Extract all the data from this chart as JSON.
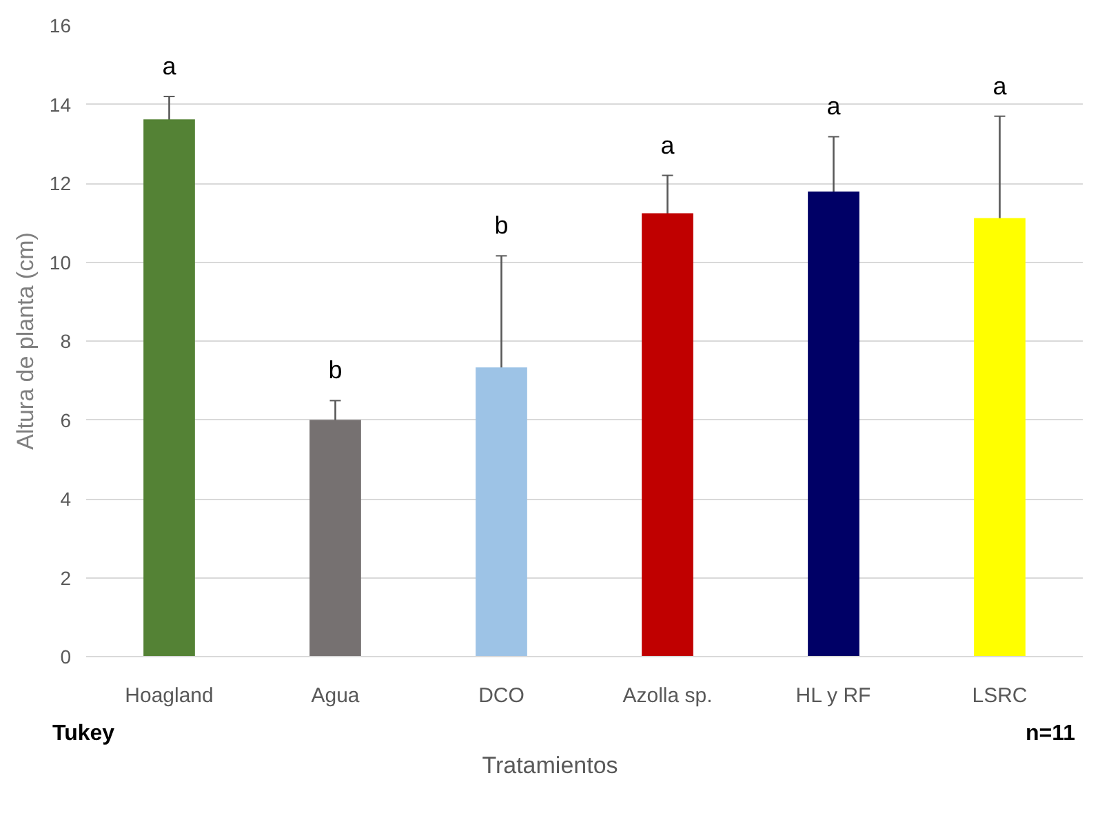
{
  "chart_data": {
    "type": "bar",
    "xlabel": "Tratamientos",
    "ylabel": "Altura de planta (cm)",
    "categories": [
      "Hoagland",
      "Agua",
      "DCO",
      "Azolla sp.",
      "HL y RF",
      "LSRC"
    ],
    "values": [
      13.62,
      6.0,
      7.33,
      11.24,
      11.79,
      11.12
    ],
    "colors": [
      "#548235",
      "#767171",
      "#9dc3e6",
      "#c00000",
      "#000066",
      "#ffff00"
    ],
    "errors": [
      0.58,
      0.49,
      2.83,
      0.96,
      1.39,
      2.58
    ],
    "ylim": [
      0,
      16
    ],
    "yticks": [
      0,
      2,
      4,
      6,
      8,
      10,
      12,
      14,
      16
    ],
    "grid": "y",
    "annotations": [
      "a",
      "b",
      "b",
      "a",
      "a",
      "a",
      "Tukey",
      "n=11"
    ]
  }
}
